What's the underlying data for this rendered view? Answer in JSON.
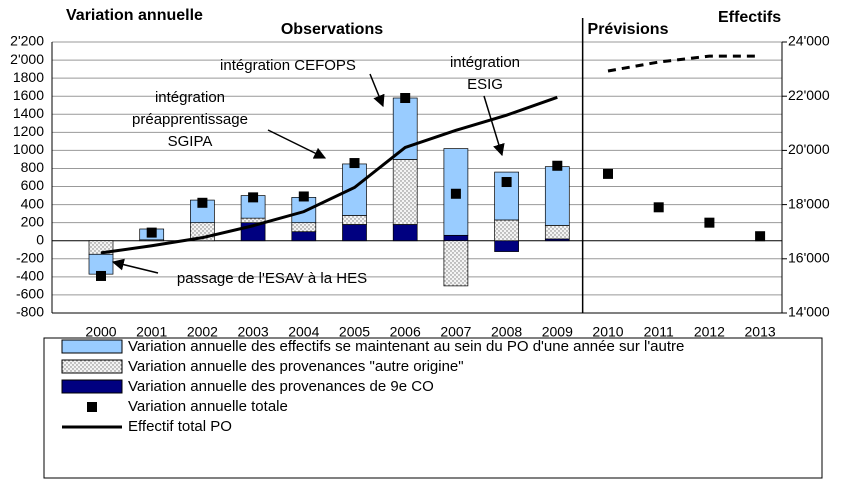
{
  "chart_data": {
    "type": "combo",
    "y_title": "Variation annuelle",
    "y2_title": "Effectifs",
    "sections": [
      {
        "title": "Observations",
        "span": 10
      },
      {
        "title": "Prévisions",
        "span": 4
      }
    ],
    "forecast_line_style": "dashed",
    "categories": [
      "2000",
      "2001",
      "2002",
      "2003",
      "2004",
      "2005",
      "2006",
      "2007",
      "2008",
      "2009",
      "2010",
      "2011",
      "2012",
      "2013"
    ],
    "ylim": [
      -800,
      2200
    ],
    "yticks": [
      -800,
      -600,
      -400,
      -200,
      0,
      200,
      400,
      600,
      800,
      1000,
      1200,
      1400,
      1600,
      1800,
      {
        "value": 2000,
        "label": "2'000"
      },
      {
        "value": 2200,
        "label": "2'200"
      }
    ],
    "y2lim": [
      14000,
      24000
    ],
    "y2ticks": [
      {
        "value": 14000,
        "label": "14'000"
      },
      {
        "value": 16000,
        "label": "16'000"
      },
      {
        "value": 18000,
        "label": "18'000"
      },
      {
        "value": 20000,
        "label": "20'000"
      },
      {
        "value": 22000,
        "label": "22'000"
      },
      {
        "value": 24000,
        "label": "24'000"
      }
    ],
    "grid": true,
    "series": [
      {
        "name": "Variation annuelle des effectifs se maintenant au sein du PO d'une année sur l'autre",
        "kind": "bar",
        "color": "#99ccff",
        "values": [
          -220,
          120,
          250,
          250,
          280,
          570,
          680,
          960,
          530,
          650,
          null,
          null,
          null,
          null
        ]
      },
      {
        "name": "Variation annuelle des provenances \"autre origine\"",
        "kind": "bar",
        "color": "#dddddd",
        "pattern": "dotted",
        "values": [
          -150,
          10,
          200,
          50,
          100,
          100,
          720,
          -500,
          230,
          150,
          null,
          null,
          null,
          null
        ]
      },
      {
        "name": "Variation annuelle des provenances de 9e CO",
        "kind": "bar",
        "color": "#000080",
        "values": [
          0,
          0,
          0,
          200,
          100,
          180,
          180,
          60,
          -120,
          20,
          null,
          null,
          null,
          null
        ]
      },
      {
        "name": "Variation annuelle totale",
        "kind": "scatter",
        "color": "#000000",
        "values": [
          -390,
          90,
          420,
          480,
          490,
          860,
          1580,
          520,
          650,
          830,
          740,
          370,
          200,
          50
        ]
      },
      {
        "name": "Effectif total PO",
        "kind": "line",
        "axis": "y2",
        "color": "#000000",
        "values": [
          16220,
          16480,
          16780,
          17220,
          17740,
          18630,
          20110,
          20740,
          21300,
          21960,
          22930,
          23260,
          23480,
          23480
        ]
      }
    ],
    "annotations": [
      {
        "text": [
          "intégration CEFOPS"
        ]
      },
      {
        "text": [
          "intégration",
          "ESIG"
        ]
      },
      {
        "text": [
          "intégration",
          "préapprentissage",
          "SGIPA"
        ]
      },
      {
        "text": [
          "passage de l'ESAV à la HES"
        ]
      }
    ]
  }
}
